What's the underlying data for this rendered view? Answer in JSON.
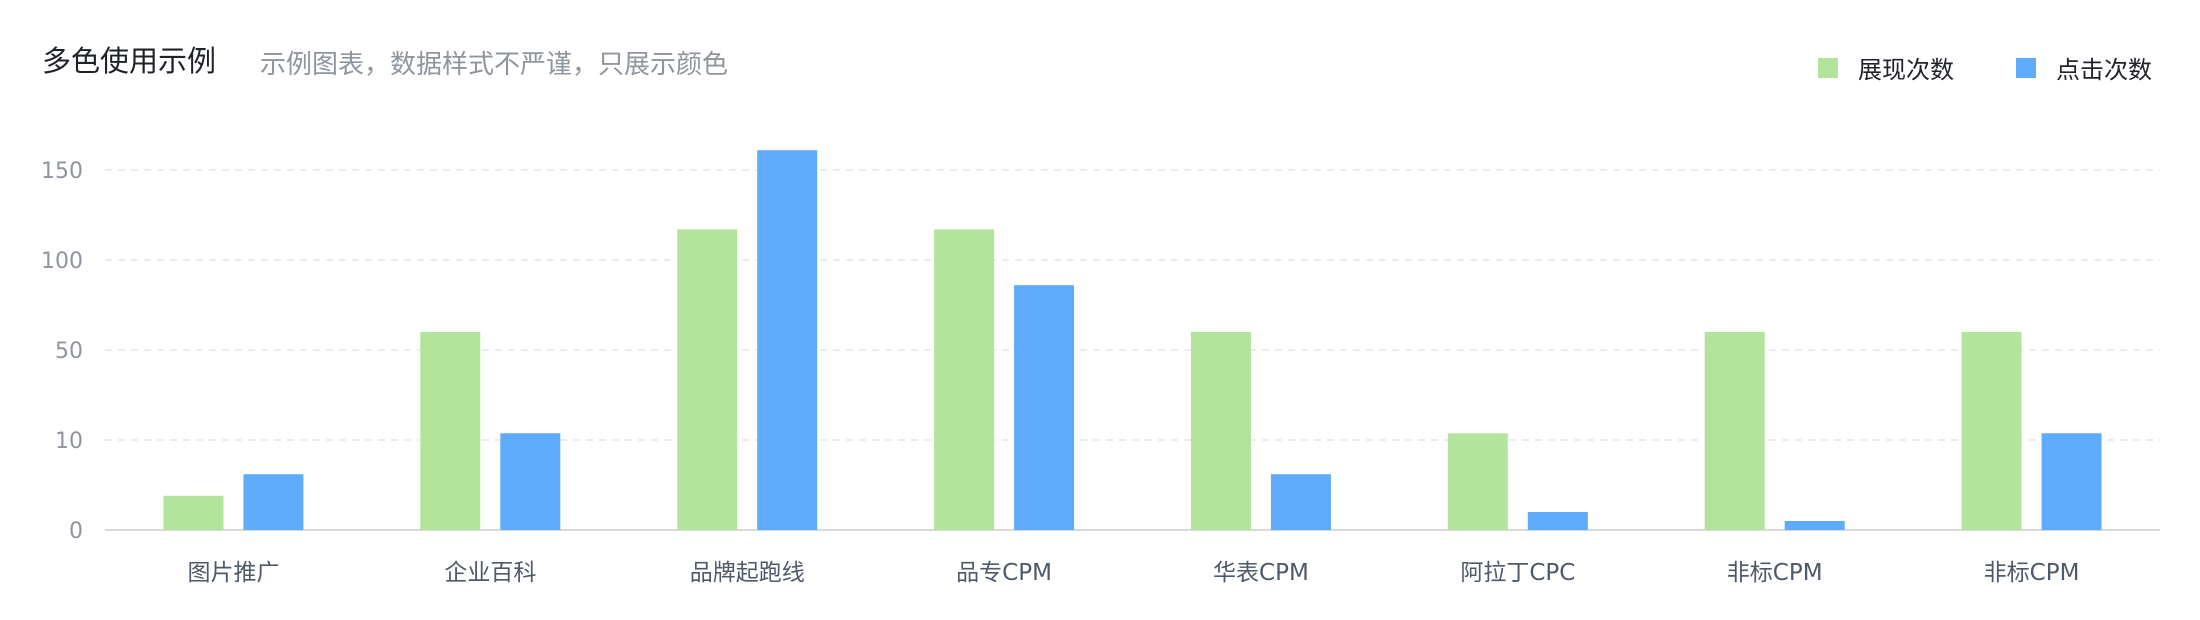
{
  "title": "多色使用示例",
  "subtitle": "示例图表，数据样式不严谨，只展示颜色",
  "colors": {
    "impressions": "#b2e49b",
    "clicks": "#5eabfb",
    "grid": "#e5e6eb",
    "axis": "#d9d9d9"
  },
  "legend": [
    {
      "name": "展现次数",
      "color": "#b2e49b"
    },
    {
      "name": "点击次数",
      "color": "#5eabfb"
    }
  ],
  "chart_data": {
    "type": "bar",
    "categories": [
      "图片推广",
      "企业百科",
      "品牌起跑线",
      "品专CPM",
      "华表CPM",
      "阿拉丁CPC",
      "非标CPM",
      "非标CPM"
    ],
    "yticks": [
      "0",
      "10",
      "50",
      "100",
      "150"
    ],
    "series": [
      {
        "name": "展现次数",
        "values": [
          3.8,
          60,
          117,
          117,
          60,
          13,
          60,
          60
        ]
      },
      {
        "name": "点击次数",
        "values": [
          6.2,
          13,
          161,
          86,
          6.2,
          2,
          1,
          13
        ]
      }
    ],
    "legend_position": "top-right",
    "grid": true
  }
}
